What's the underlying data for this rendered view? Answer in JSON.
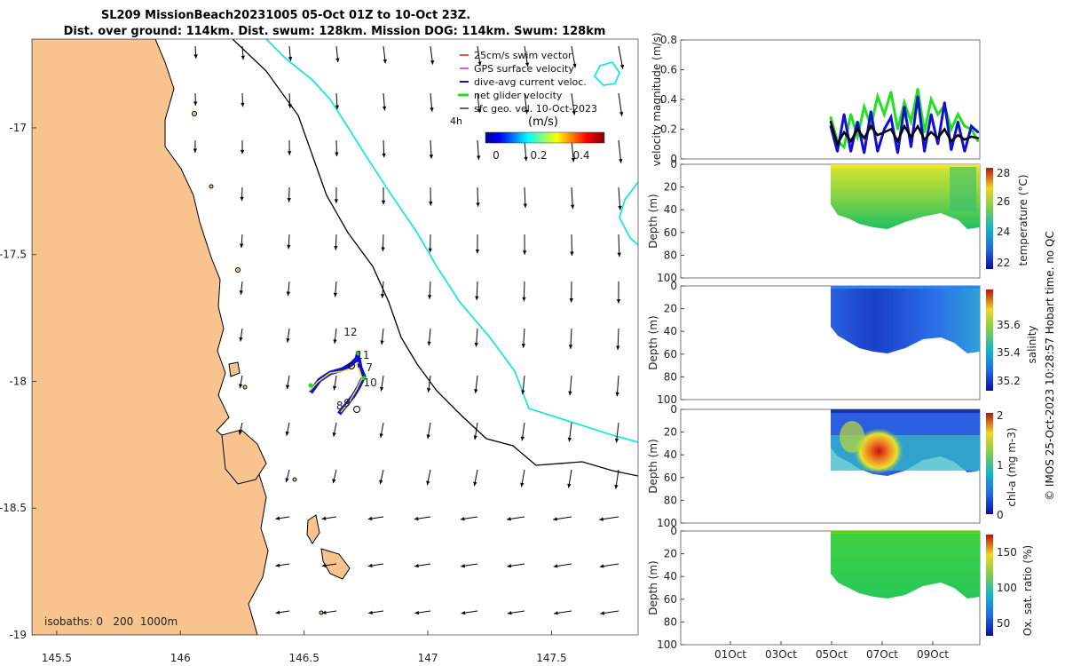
{
  "title_line1": "SL209 MissionBeach20231005 05-Oct 01Z to 10-Oct 23Z.",
  "title_line2": "Dist. over ground: 114km. Dist. swum: 128km. Mission DOG: 114km. Swum: 128km",
  "colors": {
    "land": "#F9C38F",
    "isobath_200": "#000000",
    "isobath_1000": "#00E5E5",
    "track": "#2020D0",
    "net_velocity": "#20E020"
  },
  "chart_data": [
    {
      "type": "map",
      "xlim": [
        145.4,
        147.85
      ],
      "ylim": [
        -19.0,
        -16.65
      ],
      "xticks": [
        145.5,
        146,
        146.5,
        147,
        147.5
      ],
      "xtick_labels": [
        "145.5",
        "146",
        "146.5",
        "147",
        "147.5"
      ],
      "yticks": [
        -17,
        -17.5,
        -18,
        -18.5,
        -19
      ],
      "ytick_labels": [
        "-17",
        "-17.5",
        "-18",
        "-18.5",
        "-19"
      ],
      "legend": {
        "placement": "top-right",
        "entries": [
          "25cm/s swim vector",
          "GPS surface velocity",
          "dive-avg current veloc.",
          "net glider velocity",
          "sfc geo. vel. 10-Oct-2023"
        ],
        "time_label": "4h"
      },
      "colorbar": {
        "title": "(m/s)",
        "range": [
          0,
          0.5
        ],
        "tick_labels": [
          "0",
          "0.2",
          "0.4"
        ]
      },
      "isobaths_text": "isobaths: 0   200  1000m",
      "track_day_labels": [
        {
          "label": "12",
          "lon": 146.66,
          "lat": -17.82
        },
        {
          "label": "11",
          "lon": 146.71,
          "lat": -17.91
        },
        {
          "label": "7",
          "lon": 146.75,
          "lat": -17.96
        },
        {
          "label": "10",
          "lon": 146.74,
          "lat": -18.02
        },
        {
          "label": "9",
          "lon": 146.66,
          "lat": -18.1
        },
        {
          "label": "8",
          "lon": 146.63,
          "lat": -18.11
        }
      ]
    },
    {
      "type": "line",
      "ylabel": "velocity magnitude (m/s)",
      "ylim": [
        0,
        0.8
      ],
      "yticks": [
        0,
        0.2,
        0.4,
        0.6,
        0.8
      ],
      "ytick_labels": [
        "0",
        "0.2",
        "0.4",
        "0.6",
        "0.8"
      ],
      "series": [
        {
          "name": "net glider velocity",
          "color": "#20E020",
          "values": [
            0.28,
            0.12,
            0.08,
            0.3,
            0.15,
            0.35,
            0.22,
            0.42,
            0.3,
            0.45,
            0.2,
            0.38,
            0.25,
            0.47,
            0.18,
            0.4,
            0.3,
            0.36,
            0.2,
            0.3,
            0.22,
            0.2,
            0.12
          ]
        },
        {
          "name": "dive-avg current veloc.",
          "color": "#1010D0",
          "values": [
            0.22,
            0.05,
            0.3,
            0.05,
            0.25,
            0.04,
            0.32,
            0.05,
            0.2,
            0.28,
            0.04,
            0.35,
            0.08,
            0.42,
            0.05,
            0.3,
            0.1,
            0.38,
            0.06,
            0.25,
            0.05,
            0.22,
            0.18
          ]
        },
        {
          "name": "mean",
          "color": "#000000",
          "values": [
            0.25,
            0.1,
            0.18,
            0.12,
            0.2,
            0.14,
            0.22,
            0.16,
            0.18,
            0.2,
            0.12,
            0.22,
            0.15,
            0.22,
            0.13,
            0.18,
            0.14,
            0.2,
            0.12,
            0.16,
            0.13,
            0.15,
            0.14
          ]
        }
      ]
    },
    {
      "type": "heatmap",
      "variable": "temperature",
      "ylabel": "Depth (m)",
      "cbar_label": "temperature (°C)",
      "cbar_ticks": [
        "28",
        "26",
        "24",
        "22"
      ],
      "ylim": [
        0,
        100
      ],
      "yticks": [
        "0",
        "20",
        "40",
        "60",
        "80",
        "100"
      ]
    },
    {
      "type": "heatmap",
      "variable": "salinity",
      "ylabel": "Depth (m)",
      "cbar_label": "salinity",
      "cbar_ticks": [
        "35.6",
        "35.4",
        "35.2"
      ],
      "ylim": [
        0,
        100
      ],
      "yticks": [
        "0",
        "20",
        "40",
        "60",
        "80",
        "100"
      ]
    },
    {
      "type": "heatmap",
      "variable": "chlorophyll",
      "ylabel": "Depth (m)",
      "cbar_label": "chl-a (mg m-3)",
      "cbar_ticks": [
        "2",
        "1",
        "0"
      ],
      "ylim": [
        0,
        100
      ],
      "yticks": [
        "0",
        "20",
        "40",
        "60",
        "80",
        "100"
      ]
    },
    {
      "type": "heatmap",
      "variable": "oxygen",
      "ylabel": "Depth (m)",
      "cbar_label": "Ox. sat. ratio (%)",
      "cbar_ticks": [
        "150",
        "100",
        "50"
      ],
      "ylim": [
        0,
        100
      ],
      "yticks": [
        "0",
        "20",
        "40",
        "60",
        "80",
        "100"
      ],
      "xtick_labels": [
        "01Oct",
        "03Oct",
        "05Oct",
        "07Oct",
        "09Oct"
      ]
    }
  ],
  "footer_note": "© IMOS 25-Oct-2023 10:28:57 Hobart time. no QC"
}
